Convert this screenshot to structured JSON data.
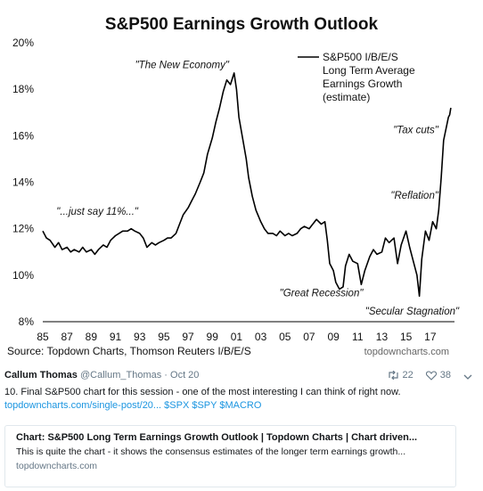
{
  "chart_data": {
    "type": "line",
    "title": "S&P500 Earnings Growth Outlook",
    "legend": "S&P500 I/B/E/S Long Term Average Earnings Growth (estimate)",
    "legend_lines": [
      "S&P500 I/B/E/S",
      "Long Term Average",
      "Earnings Growth",
      "(estimate)"
    ],
    "ylim": [
      8,
      20
    ],
    "yticks": [
      "8%",
      "10%",
      "12%",
      "14%",
      "16%",
      "18%",
      "20%"
    ],
    "xlim": [
      1985,
      2019
    ],
    "xticks": [
      "85",
      "87",
      "89",
      "91",
      "93",
      "95",
      "97",
      "99",
      "01",
      "03",
      "05",
      "07",
      "09",
      "11",
      "13",
      "15",
      "17"
    ],
    "source": "Source: Topdown Charts, Thomson Reuters I/B/E/S",
    "watermark": "topdowncharts.com",
    "annotations": [
      {
        "text": "\"The New Economy\"",
        "x": 1996.5,
        "y": 18.9
      },
      {
        "text": "\"...just say 11%...\"",
        "x": 1989.5,
        "y": 12.6
      },
      {
        "text": "\"Great Recession\"",
        "x": 2008.0,
        "y": 9.1
      },
      {
        "text": "\"Secular Stagnation\"",
        "x": 2015.5,
        "y": 8.3
      },
      {
        "text": "\"Reflation\"",
        "x": 2015.7,
        "y": 13.3
      },
      {
        "text": "\"Tax cuts\"",
        "x": 2015.8,
        "y": 16.1
      }
    ],
    "series": [
      {
        "points": [
          [
            1985.0,
            11.9
          ],
          [
            1985.3,
            11.6
          ],
          [
            1985.6,
            11.5
          ],
          [
            1986.0,
            11.2
          ],
          [
            1986.3,
            11.4
          ],
          [
            1986.6,
            11.1
          ],
          [
            1987.0,
            11.2
          ],
          [
            1987.3,
            11.0
          ],
          [
            1987.6,
            11.1
          ],
          [
            1988.0,
            11.0
          ],
          [
            1988.3,
            11.2
          ],
          [
            1988.6,
            11.0
          ],
          [
            1989.0,
            11.1
          ],
          [
            1989.3,
            10.9
          ],
          [
            1989.6,
            11.1
          ],
          [
            1990.0,
            11.3
          ],
          [
            1990.3,
            11.2
          ],
          [
            1990.6,
            11.5
          ],
          [
            1991.0,
            11.7
          ],
          [
            1991.3,
            11.8
          ],
          [
            1991.6,
            11.9
          ],
          [
            1992.0,
            11.9
          ],
          [
            1992.3,
            12.0
          ],
          [
            1992.6,
            11.9
          ],
          [
            1993.0,
            11.8
          ],
          [
            1993.3,
            11.6
          ],
          [
            1993.6,
            11.2
          ],
          [
            1994.0,
            11.4
          ],
          [
            1994.3,
            11.3
          ],
          [
            1994.6,
            11.4
          ],
          [
            1995.0,
            11.5
          ],
          [
            1995.3,
            11.6
          ],
          [
            1995.6,
            11.6
          ],
          [
            1996.0,
            11.8
          ],
          [
            1996.3,
            12.2
          ],
          [
            1996.6,
            12.6
          ],
          [
            1997.0,
            12.9
          ],
          [
            1997.3,
            13.2
          ],
          [
            1997.6,
            13.5
          ],
          [
            1998.0,
            14.0
          ],
          [
            1998.3,
            14.4
          ],
          [
            1998.6,
            15.2
          ],
          [
            1999.0,
            15.9
          ],
          [
            1999.3,
            16.6
          ],
          [
            1999.6,
            17.2
          ],
          [
            1999.9,
            17.9
          ],
          [
            2000.2,
            18.4
          ],
          [
            2000.5,
            18.2
          ],
          [
            2000.8,
            18.7
          ],
          [
            2001.0,
            18.0
          ],
          [
            2001.2,
            16.8
          ],
          [
            2001.5,
            15.9
          ],
          [
            2001.8,
            15.0
          ],
          [
            2002.0,
            14.2
          ],
          [
            2002.3,
            13.4
          ],
          [
            2002.6,
            12.8
          ],
          [
            2003.0,
            12.3
          ],
          [
            2003.3,
            12.0
          ],
          [
            2003.6,
            11.8
          ],
          [
            2004.0,
            11.8
          ],
          [
            2004.3,
            11.7
          ],
          [
            2004.6,
            11.9
          ],
          [
            2005.0,
            11.7
          ],
          [
            2005.3,
            11.8
          ],
          [
            2005.6,
            11.7
          ],
          [
            2006.0,
            11.8
          ],
          [
            2006.3,
            12.0
          ],
          [
            2006.6,
            12.1
          ],
          [
            2007.0,
            12.0
          ],
          [
            2007.3,
            12.2
          ],
          [
            2007.6,
            12.4
          ],
          [
            2008.0,
            12.2
          ],
          [
            2008.3,
            12.3
          ],
          [
            2008.5,
            11.5
          ],
          [
            2008.7,
            10.5
          ],
          [
            2009.0,
            10.2
          ],
          [
            2009.2,
            9.7
          ],
          [
            2009.5,
            9.4
          ],
          [
            2009.8,
            9.5
          ],
          [
            2010.0,
            10.4
          ],
          [
            2010.3,
            10.9
          ],
          [
            2010.6,
            10.6
          ],
          [
            2011.0,
            10.5
          ],
          [
            2011.3,
            9.6
          ],
          [
            2011.6,
            10.2
          ],
          [
            2012.0,
            10.8
          ],
          [
            2012.3,
            11.1
          ],
          [
            2012.6,
            10.9
          ],
          [
            2013.0,
            11.0
          ],
          [
            2013.3,
            11.6
          ],
          [
            2013.6,
            11.4
          ],
          [
            2014.0,
            11.6
          ],
          [
            2014.3,
            10.5
          ],
          [
            2014.6,
            11.3
          ],
          [
            2015.0,
            11.9
          ],
          [
            2015.3,
            11.2
          ],
          [
            2015.6,
            10.6
          ],
          [
            2015.9,
            10.0
          ],
          [
            2016.1,
            9.1
          ],
          [
            2016.3,
            10.7
          ],
          [
            2016.6,
            11.9
          ],
          [
            2016.9,
            11.5
          ],
          [
            2017.2,
            12.3
          ],
          [
            2017.5,
            12.0
          ],
          [
            2017.7,
            12.8
          ],
          [
            2017.9,
            14.2
          ],
          [
            2018.1,
            15.8
          ],
          [
            2018.3,
            16.3
          ],
          [
            2018.5,
            16.8
          ],
          [
            2018.6,
            16.9
          ],
          [
            2018.7,
            17.2
          ]
        ]
      }
    ]
  },
  "tweet": {
    "author_name": "Callum Thomas",
    "author_handle": "@Callum_Thomas",
    "separator": "·",
    "date": "Oct 20",
    "retweets": "22",
    "likes": "38",
    "retweet_icon": "retweet-icon",
    "like_icon": "heart-icon",
    "more_icon": "chevron-down-icon",
    "text": "10. Final S&P500 chart for this session - one of the most interesting I can think of right now.",
    "link": "topdowncharts.com/single-post/20...",
    "hashtags": "$SPX $SPY $MACRO"
  },
  "card": {
    "title": "Chart: S&P500 Long Term Earnings Growth Outlook | Topdown Charts | Chart driven...",
    "description": "This is quite the chart - it shows the consensus estimates of the longer term earnings growth...",
    "domain": "topdowncharts.com"
  }
}
